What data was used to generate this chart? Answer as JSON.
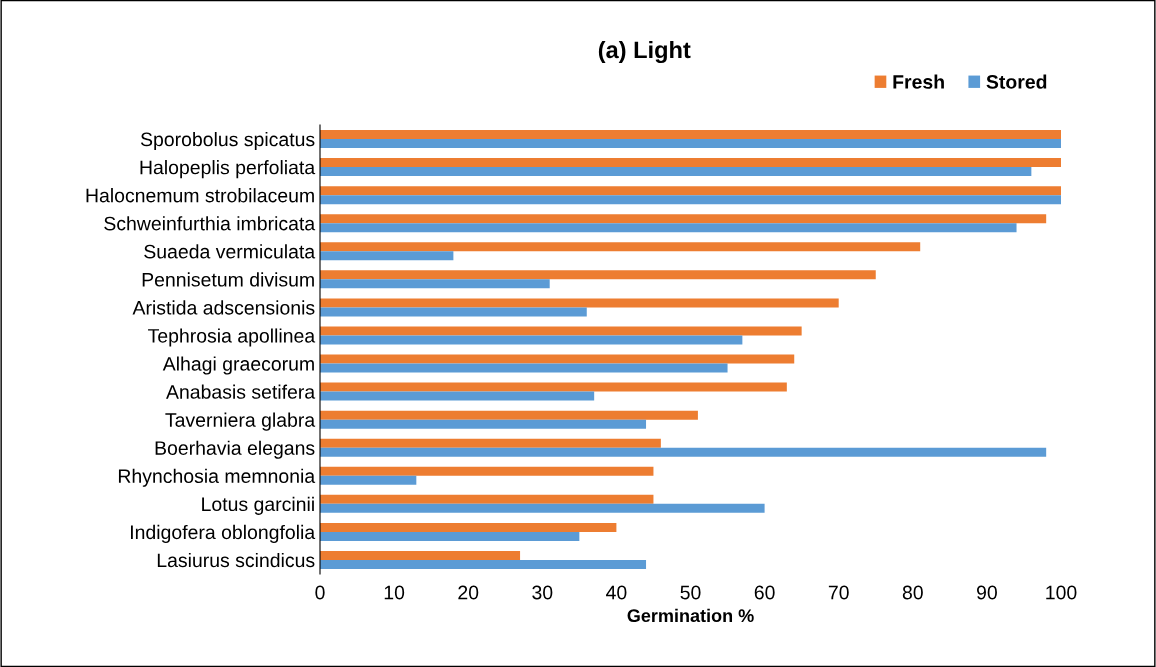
{
  "chart_data": {
    "type": "bar",
    "orientation": "horizontal",
    "title": "(a) Light",
    "xlabel": "Germination %",
    "categories": [
      "Sporobolus spicatus",
      "Halopeplis perfoliata",
      "Halocnemum strobilaceum",
      "Schweinfurthia imbricata",
      "Suaeda vermiculata",
      "Pennisetum divisum",
      "Aristida adscensionis",
      "Tephrosia apollinea",
      "Alhagi graecorum",
      "Anabasis setifera",
      "Taverniera glabra",
      "Boerhavia elegans",
      "Rhynchosia memnonia",
      "Lotus garcinii",
      "Indigofera oblongfolia",
      "Lasiurus scindicus"
    ],
    "series": [
      {
        "name": "Fresh",
        "color": "#ed7d31",
        "values": [
          100,
          100,
          100,
          98,
          81,
          75,
          70,
          65,
          64,
          63,
          51,
          46,
          45,
          45,
          40,
          27
        ]
      },
      {
        "name": "Stored",
        "color": "#5b9bd5",
        "values": [
          100,
          96,
          100,
          94,
          18,
          31,
          36,
          57,
          55,
          37,
          44,
          98,
          13,
          60,
          35,
          44
        ]
      }
    ],
    "xlim": [
      0,
      100
    ],
    "xticks": [
      0,
      10,
      20,
      30,
      40,
      50,
      60,
      70,
      80,
      90,
      100
    ],
    "grid": false,
    "legend": "top right"
  }
}
